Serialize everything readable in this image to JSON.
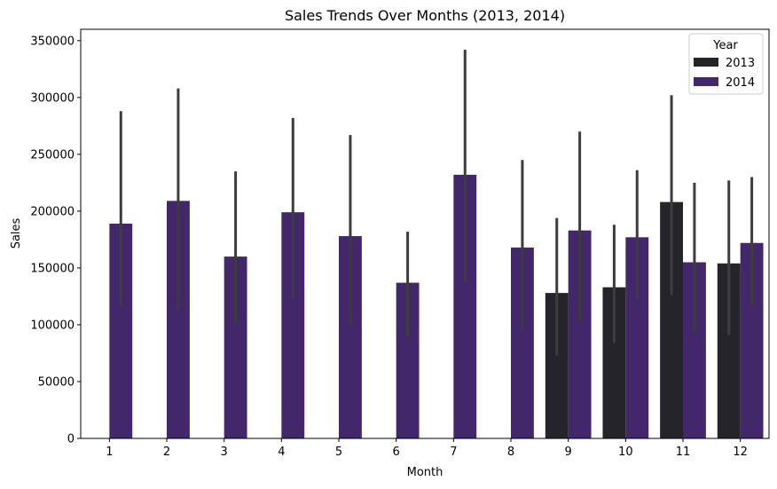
{
  "chart_data": {
    "type": "bar",
    "title": "Sales Trends Over Months (2013, 2014)",
    "xlabel": "Month",
    "ylabel": "Sales",
    "ylim": [
      0,
      360000
    ],
    "yticks": [
      0,
      50000,
      100000,
      150000,
      200000,
      250000,
      300000,
      350000
    ],
    "categories": [
      "1",
      "2",
      "3",
      "4",
      "5",
      "6",
      "7",
      "8",
      "9",
      "10",
      "11",
      "12"
    ],
    "series": [
      {
        "name": "2013",
        "color": "#25242b",
        "values": [
          null,
          null,
          null,
          null,
          null,
          null,
          null,
          null,
          128000,
          133000,
          208000,
          154000
        ],
        "err_low": [
          null,
          null,
          null,
          null,
          null,
          null,
          null,
          null,
          73000,
          84000,
          126000,
          91000
        ],
        "err_high": [
          null,
          null,
          null,
          null,
          null,
          null,
          null,
          null,
          194000,
          188000,
          302000,
          227000
        ]
      },
      {
        "name": "2014",
        "color": "#42276b",
        "values": [
          189000,
          209000,
          160000,
          199000,
          178000,
          137000,
          232000,
          168000,
          183000,
          177000,
          155000,
          172000
        ],
        "err_low": [
          116000,
          113000,
          101000,
          123000,
          101000,
          90000,
          138000,
          96000,
          104000,
          123000,
          94000,
          117000
        ],
        "err_high": [
          288000,
          308000,
          235000,
          282000,
          267000,
          182000,
          342000,
          245000,
          270000,
          236000,
          225000,
          230000
        ]
      }
    ],
    "errorbar_color": "#3d3d3d",
    "legend": {
      "title": "Year",
      "placement": "upper right",
      "entries": [
        "2013",
        "2014"
      ]
    },
    "grid": false
  }
}
